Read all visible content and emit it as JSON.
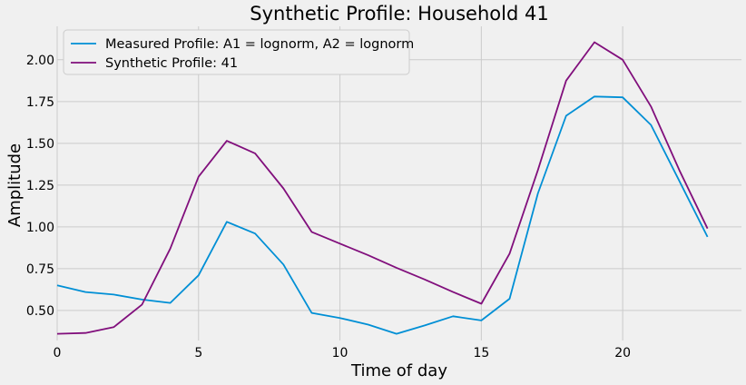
{
  "chart_data": {
    "type": "line",
    "title": "Synthetic Profile: Household 41",
    "xlabel": "Time of day",
    "ylabel": "Amplitude",
    "xlim": [
      0,
      24.2
    ],
    "ylim": [
      0.32,
      2.2
    ],
    "xticks": [
      0,
      5,
      10,
      15,
      20
    ],
    "xtick_labels": [
      "0",
      "5",
      "10",
      "15",
      "20"
    ],
    "yticks": [
      0.5,
      0.75,
      1.0,
      1.25,
      1.5,
      1.75,
      2.0
    ],
    "ytick_labels": [
      "0.50",
      "0.75",
      "1.00",
      "1.25",
      "1.50",
      "1.75",
      "2.00"
    ],
    "grid": true,
    "legend_position": "top-left",
    "x": [
      0,
      1,
      2,
      3,
      4,
      5,
      6,
      7,
      8,
      9,
      10,
      11,
      12,
      13,
      14,
      15,
      16,
      17,
      18,
      19,
      20,
      21,
      22,
      23
    ],
    "series": [
      {
        "name": "Measured Profile: A1 = lognorm, A2 = lognorm",
        "color": "#008fd5",
        "values": [
          0.65,
          0.61,
          0.595,
          0.565,
          0.545,
          0.71,
          1.03,
          0.96,
          0.775,
          0.485,
          0.455,
          0.415,
          0.36,
          0.41,
          0.465,
          0.44,
          0.57,
          1.2,
          1.665,
          1.78,
          1.775,
          1.61,
          1.275,
          0.94
        ]
      },
      {
        "name": "Synthetic Profile: 41",
        "color": "#810f7c",
        "values": [
          0.36,
          0.365,
          0.4,
          0.535,
          0.87,
          1.3,
          1.515,
          1.44,
          1.23,
          0.97,
          0.9,
          0.83,
          0.755,
          0.685,
          0.61,
          0.54,
          0.84,
          1.34,
          1.875,
          2.105,
          2.0,
          1.72,
          1.34,
          0.99
        ]
      }
    ]
  }
}
